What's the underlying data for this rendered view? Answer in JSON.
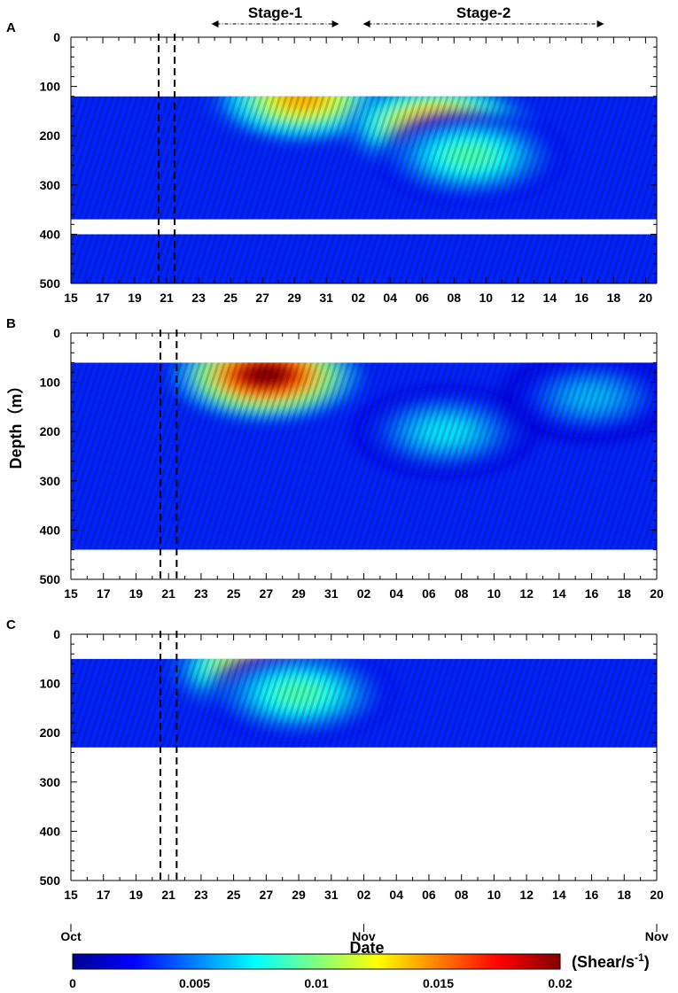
{
  "chart_data": {
    "type": "heatmap",
    "ylabel": "Depth（m）",
    "xlabel": "Date",
    "yticks": [
      "0",
      "100",
      "200",
      "300",
      "400",
      "500"
    ],
    "ylim": [
      500,
      0
    ],
    "event_lines_day": [
      20.5,
      21.5
    ],
    "stages": [
      {
        "label": "Stage-1",
        "start_day": 23.8,
        "end_day": 31.8
      },
      {
        "label": "Stage-2",
        "start_day": 33.3,
        "end_day": 48.4
      }
    ],
    "month_labels": [
      {
        "label": "Oct",
        "day": 15
      },
      {
        "label": "Nov",
        "day": 33
      },
      {
        "label": "Nov",
        "day": 51
      }
    ],
    "colorbar": {
      "title": "(Shear/s",
      "title_sup": "-1",
      "title_close": ")",
      "min": 0,
      "max": 0.02,
      "ticks": [
        "0",
        "0.005",
        "0.01",
        "0.015",
        "0.02"
      ],
      "colors": [
        "#00008f",
        "#0000ff",
        "#0080ff",
        "#00ffff",
        "#80ff80",
        "#ffff00",
        "#ff8000",
        "#ff0000",
        "#800000"
      ]
    },
    "panels": [
      {
        "letter": "A",
        "x_ticks": [
          "15",
          "17",
          "19",
          "21",
          "23",
          "25",
          "27",
          "29",
          "31",
          "02",
          "04",
          "06",
          "08",
          "10",
          "12",
          "14",
          "16",
          "18",
          "20"
        ],
        "x_start_day": 15,
        "x_end_day": 51.7,
        "data_depth_ranges": [
          [
            120,
            370
          ],
          [
            400,
            500
          ]
        ],
        "max_shear_value": 0.016,
        "hotspots": [
          {
            "day": 29.5,
            "depth": 125,
            "value": 0.014
          },
          {
            "day": 38,
            "depth": 180,
            "value": 0.016
          },
          {
            "day": 40,
            "depth": 240,
            "value": 0.009
          }
        ]
      },
      {
        "letter": "B",
        "x_ticks": [
          "15",
          "17",
          "19",
          "21",
          "23",
          "25",
          "27",
          "29",
          "31",
          "02",
          "04",
          "06",
          "08",
          "10",
          "12",
          "14",
          "16",
          "18",
          "20"
        ],
        "x_start_day": 15,
        "x_end_day": 51,
        "data_depth_ranges": [
          [
            60,
            440
          ]
        ],
        "max_shear_value": 0.02,
        "hotspots": [
          {
            "day": 27,
            "depth": 85,
            "value": 0.02
          },
          {
            "day": 38,
            "depth": 200,
            "value": 0.007
          },
          {
            "day": 47,
            "depth": 130,
            "value": 0.006
          }
        ]
      },
      {
        "letter": "C",
        "x_ticks": [
          "15",
          "17",
          "19",
          "21",
          "23",
          "25",
          "27",
          "29",
          "31",
          "02",
          "04",
          "06",
          "08",
          "10",
          "12",
          "14",
          "16",
          "18",
          "20"
        ],
        "x_start_day": 15,
        "x_end_day": 51,
        "data_depth_ranges": [
          [
            50,
            230
          ]
        ],
        "max_shear_value": 0.016,
        "hotspots": [
          {
            "day": 27,
            "depth": 70,
            "value": 0.016
          },
          {
            "day": 29,
            "depth": 120,
            "value": 0.009
          }
        ]
      }
    ]
  }
}
